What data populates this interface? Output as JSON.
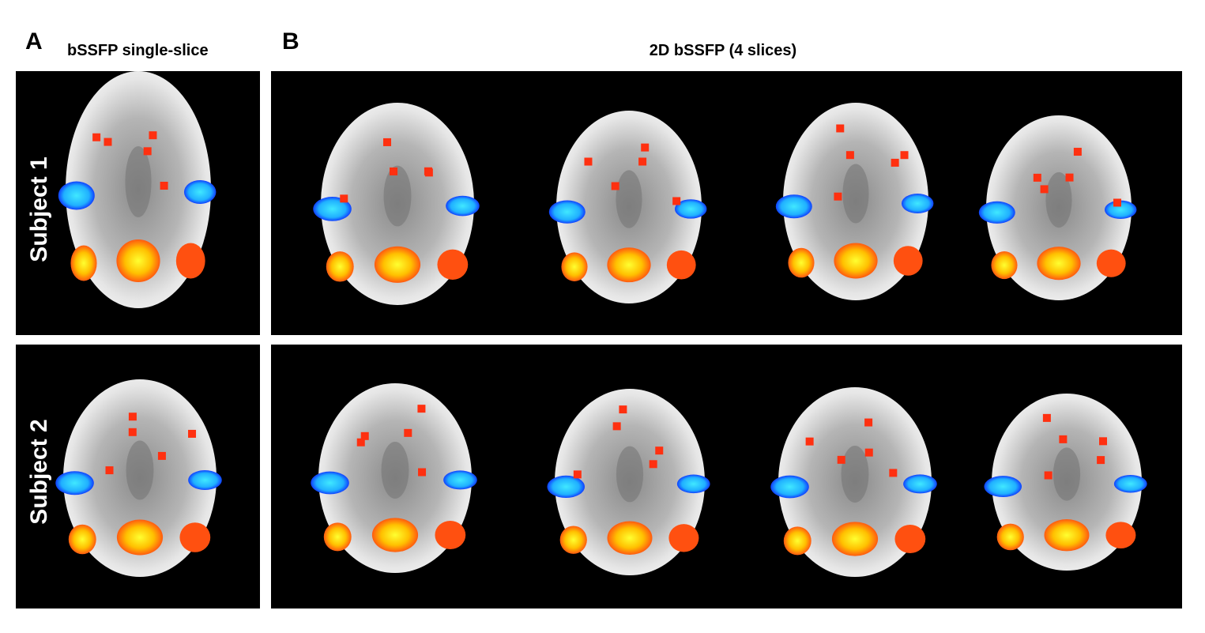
{
  "panel_a": {
    "letter": "A",
    "title": "bSSFP single-slice"
  },
  "panel_b": {
    "letter": "B",
    "title": "2D bSSFP (4 slices)"
  },
  "rows": [
    {
      "label": "Subject 1"
    },
    {
      "label": "Subject 2"
    }
  ]
}
